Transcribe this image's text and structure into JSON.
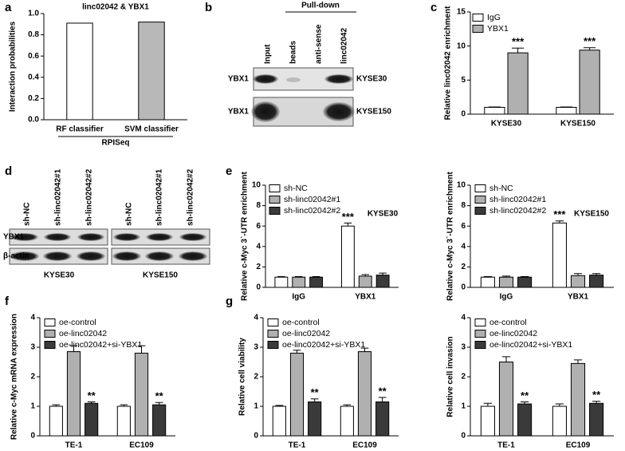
{
  "panel_labels": [
    "a",
    "b",
    "c",
    "d",
    "e",
    "f",
    "g"
  ],
  "blots": {
    "b": {
      "header": "Pull-down",
      "lanes": [
        "Input",
        "beads",
        "anti-sense",
        "linc02042"
      ],
      "rows": [
        "YBX1",
        "YBX1"
      ],
      "cell_lines": [
        "KYSE30",
        "KYSE150"
      ]
    },
    "d": {
      "lanes": [
        "sh-NC",
        "sh-linc02042#1",
        "sh-linc02042#2",
        "sh-NC",
        "sh-linc02042#1",
        "sh-linc02042#2"
      ],
      "rows": [
        "YBX1",
        "β-actin"
      ],
      "cell_lines": [
        "KYSE30",
        "KYSE150"
      ]
    }
  },
  "chart_data": [
    {
      "type": "bar",
      "title": "linc02042 & YBX1",
      "y_label": "Interaction probabilities",
      "x_label": "RPISeq",
      "categories": [
        "RF classifier",
        "SVM classifier"
      ],
      "values": [
        0.91,
        0.92
      ],
      "colors": [
        "#ffffff",
        "#b8b8b8"
      ],
      "ylim": [
        0,
        1
      ],
      "yticks": [
        {
          "value": 0,
          "label": "0.0"
        },
        0.2,
        0.4,
        0.6,
        0.8,
        {
          "value": 1,
          "label": "1.0"
        }
      ]
    },
    {
      "type": "bar",
      "y_label": "Relative linc02042 enrichment",
      "categories": [
        "KYSE30",
        "KYSE150"
      ],
      "series": [
        {
          "name": "IgG",
          "color": "#ffffff",
          "values": [
            1,
            1
          ],
          "errors": [
            0.05,
            0.05
          ]
        },
        {
          "name": "YBX1",
          "color": "#b0b0b0",
          "values": [
            9.0,
            9.4
          ],
          "errors": [
            0.7,
            0.35
          ],
          "significance": [
            "***",
            "***"
          ]
        }
      ],
      "ylim": [
        0,
        15
      ],
      "yticks": [
        0,
        5,
        10,
        15
      ]
    },
    {
      "type": "bar",
      "subtitle": "KYSE30",
      "y_label": "Relative c-Myc 3`-UTR enrichment",
      "categories": [
        "IgG",
        "YBX1"
      ],
      "series": [
        {
          "name": "sh-NC",
          "color": "#ffffff",
          "values": [
            1,
            6.0
          ],
          "errors": [
            0.05,
            0.3
          ],
          "significance": [
            null,
            "***"
          ]
        },
        {
          "name": "sh-linc02042#1",
          "color": "#b0b0b0",
          "values": [
            1,
            1.1
          ],
          "errors": [
            0.05,
            0.15
          ]
        },
        {
          "name": "sh-linc02042#2",
          "color": "#3a3a3a",
          "values": [
            1,
            1.2
          ],
          "errors": [
            0.05,
            0.2
          ]
        }
      ],
      "ylim": [
        0,
        10
      ],
      "yticks": [
        0,
        2,
        4,
        6,
        8,
        10
      ]
    },
    {
      "type": "bar",
      "subtitle": "KYSE150",
      "y_label": "Relative c-Myc 3`-UTR enrichment",
      "categories": [
        "IgG",
        "YBX1"
      ],
      "series": [
        {
          "name": "sh-NC",
          "color": "#ffffff",
          "values": [
            1,
            6.3
          ],
          "errors": [
            0.05,
            0.2
          ],
          "significance": [
            null,
            "***"
          ]
        },
        {
          "name": "sh-linc02042#1",
          "color": "#b0b0b0",
          "values": [
            1,
            1.15
          ],
          "errors": [
            0.1,
            0.2
          ]
        },
        {
          "name": "sh-linc02042#2",
          "color": "#3a3a3a",
          "values": [
            1,
            1.2
          ],
          "errors": [
            0.05,
            0.15
          ]
        }
      ],
      "ylim": [
        0,
        10
      ],
      "yticks": [
        0,
        2,
        4,
        6,
        8,
        10
      ]
    },
    {
      "type": "bar",
      "y_label": "Relative c-Myc mRNA expression",
      "categories": [
        "TE-1",
        "EC109"
      ],
      "series": [
        {
          "name": "oe-control",
          "color": "#ffffff",
          "values": [
            1,
            1
          ],
          "errors": [
            0.05,
            0.05
          ]
        },
        {
          "name": "oe-linc02042",
          "color": "#b0b0b0",
          "values": [
            2.85,
            2.8
          ],
          "errors": [
            0.2,
            0.25
          ]
        },
        {
          "name": "oe-linc02042+si-YBX1",
          "color": "#3a3a3a",
          "values": [
            1.1,
            1.05
          ],
          "errors": [
            0.05,
            0.08
          ],
          "significance": [
            "**",
            "**"
          ]
        }
      ],
      "ylim": [
        0,
        4
      ],
      "yticks": [
        0,
        1,
        2,
        3,
        4
      ]
    },
    {
      "type": "bar",
      "y_label": "Relative cell viability",
      "categories": [
        "TE-1",
        "EC109"
      ],
      "series": [
        {
          "name": "oe-control",
          "color": "#ffffff",
          "values": [
            1,
            1
          ],
          "errors": [
            0.03,
            0.05
          ]
        },
        {
          "name": "oe-linc02042",
          "color": "#b0b0b0",
          "values": [
            2.8,
            2.85
          ],
          "errors": [
            0.1,
            0.12
          ]
        },
        {
          "name": "oe-linc02042+si-YBX1",
          "color": "#3a3a3a",
          "values": [
            1.15,
            1.15
          ],
          "errors": [
            0.1,
            0.15
          ],
          "significance": [
            "**",
            "**"
          ]
        }
      ],
      "ylim": [
        0,
        4
      ],
      "yticks": [
        0,
        1,
        2,
        3,
        4
      ]
    },
    {
      "type": "bar",
      "y_label": "Relative cell invasion",
      "categories": [
        "TE-1",
        "EC109"
      ],
      "series": [
        {
          "name": "oe-control",
          "color": "#ffffff",
          "values": [
            1,
            1
          ],
          "errors": [
            0.1,
            0.08
          ]
        },
        {
          "name": "oe-linc02042",
          "color": "#b0b0b0",
          "values": [
            2.5,
            2.45
          ],
          "errors": [
            0.18,
            0.12
          ]
        },
        {
          "name": "oe-linc02042+si-YBX1",
          "color": "#3a3a3a",
          "values": [
            1.08,
            1.1
          ],
          "errors": [
            0.07,
            0.07
          ],
          "significance": [
            "**",
            "**"
          ]
        }
      ],
      "ylim": [
        0,
        4
      ],
      "yticks": [
        0,
        1,
        2,
        3,
        4
      ]
    }
  ]
}
